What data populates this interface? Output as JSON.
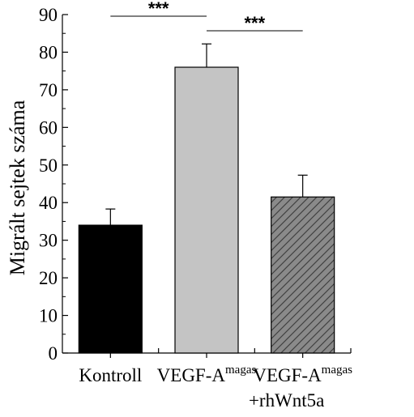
{
  "chart_data": {
    "type": "bar",
    "title": "",
    "xlabel": "",
    "ylabel": "Migrált sejtek száma",
    "ylim": [
      0,
      90
    ],
    "yticks": [
      0,
      10,
      20,
      30,
      40,
      50,
      60,
      70,
      80,
      90
    ],
    "grid": false,
    "categories": [
      {
        "label": "Kontroll",
        "sup": "",
        "line2": ""
      },
      {
        "label": "VEGF-A",
        "sup": "magas",
        "line2": ""
      },
      {
        "label": "VEGF-A",
        "sup": "magas",
        "line2": "+rhWnt5a"
      }
    ],
    "values": [
      34,
      76,
      41.5
    ],
    "errors": [
      4.3,
      6.2,
      5.8
    ],
    "bar_colors": [
      "#000000",
      "#c4c4c4",
      "#8a8a8a"
    ],
    "bar_patterns": [
      "solid",
      "solid",
      "hatch"
    ],
    "significance": [
      {
        "from": 0,
        "to": 1,
        "label": "***"
      },
      {
        "from": 1,
        "to": 2,
        "label": "***"
      }
    ]
  }
}
